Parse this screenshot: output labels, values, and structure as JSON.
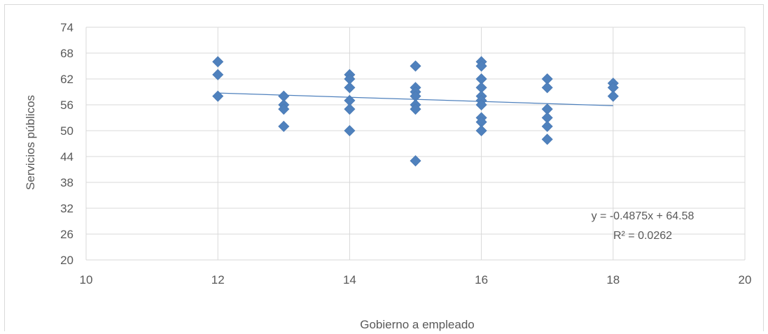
{
  "chart_data": {
    "type": "scatter",
    "title": "",
    "xlabel": "Gobierno a empleado",
    "ylabel": "Servicios públicos",
    "xlim": [
      10,
      20
    ],
    "ylim": [
      20,
      74
    ],
    "xticks": [
      10,
      12,
      14,
      16,
      18,
      20
    ],
    "yticks": [
      20,
      26,
      32,
      38,
      44,
      50,
      56,
      62,
      68,
      74
    ],
    "x_tick_labels": [
      "10",
      "12",
      "14",
      "16",
      "18",
      "20"
    ],
    "y_tick_labels": [
      "20",
      "26",
      "32",
      "38",
      "44",
      "50",
      "56",
      "62",
      "68",
      "74"
    ],
    "grid": true,
    "marker_color": "#4f81bd",
    "trendline_color": "#4f81bd",
    "points": [
      {
        "x": 12,
        "y": 66
      },
      {
        "x": 12,
        "y": 63
      },
      {
        "x": 12,
        "y": 58
      },
      {
        "x": 13,
        "y": 58
      },
      {
        "x": 13,
        "y": 56
      },
      {
        "x": 13,
        "y": 55
      },
      {
        "x": 13,
        "y": 51
      },
      {
        "x": 14,
        "y": 63
      },
      {
        "x": 14,
        "y": 62
      },
      {
        "x": 14,
        "y": 60
      },
      {
        "x": 14,
        "y": 57
      },
      {
        "x": 14,
        "y": 55
      },
      {
        "x": 14,
        "y": 50
      },
      {
        "x": 15,
        "y": 65
      },
      {
        "x": 15,
        "y": 60
      },
      {
        "x": 15,
        "y": 59
      },
      {
        "x": 15,
        "y": 58
      },
      {
        "x": 15,
        "y": 56
      },
      {
        "x": 15,
        "y": 55
      },
      {
        "x": 15,
        "y": 43
      },
      {
        "x": 16,
        "y": 66
      },
      {
        "x": 16,
        "y": 65
      },
      {
        "x": 16,
        "y": 62
      },
      {
        "x": 16,
        "y": 60
      },
      {
        "x": 16,
        "y": 58
      },
      {
        "x": 16,
        "y": 57
      },
      {
        "x": 16,
        "y": 56
      },
      {
        "x": 16,
        "y": 53
      },
      {
        "x": 16,
        "y": 52
      },
      {
        "x": 16,
        "y": 50
      },
      {
        "x": 17,
        "y": 62
      },
      {
        "x": 17,
        "y": 60
      },
      {
        "x": 17,
        "y": 55
      },
      {
        "x": 17,
        "y": 53
      },
      {
        "x": 17,
        "y": 51
      },
      {
        "x": 17,
        "y": 48
      },
      {
        "x": 18,
        "y": 61
      },
      {
        "x": 18,
        "y": 60
      },
      {
        "x": 18,
        "y": 58
      }
    ],
    "trendline": {
      "slope": -0.4875,
      "intercept": 64.58,
      "x_range": [
        12,
        18
      ],
      "equation": "y = -0.4875x + 64.58",
      "r_squared": "R² = 0.0262"
    }
  }
}
